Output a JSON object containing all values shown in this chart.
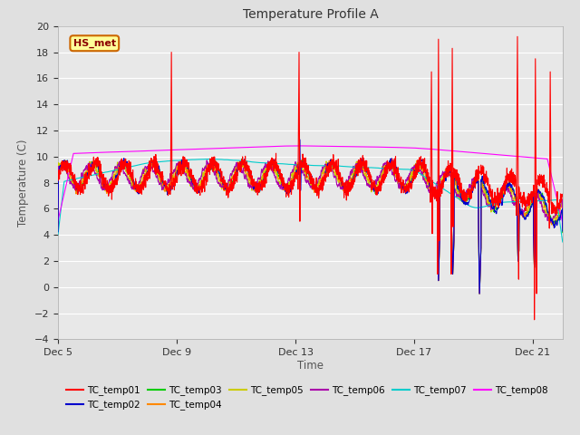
{
  "title": "Temperature Profile A",
  "xlabel": "Time",
  "ylabel": "Temperature (C)",
  "ylim": [
    -4,
    20
  ],
  "yticks": [
    -4,
    -2,
    0,
    2,
    4,
    6,
    8,
    10,
    12,
    14,
    16,
    18,
    20
  ],
  "xtick_labels": [
    "Dec 5",
    "Dec 9",
    "Dec 13",
    "Dec 17",
    "Dec 21"
  ],
  "xtick_positions": [
    0,
    4,
    8,
    12,
    16
  ],
  "xlim": [
    0,
    17
  ],
  "background_color": "#e0e0e0",
  "plot_bg_color": "#e8e8e8",
  "grid_color": "#ffffff",
  "annotation_text": "HS_met",
  "annotation_bg": "#ffff99",
  "annotation_border": "#cc6600",
  "annotation_text_color": "#8b0000",
  "series_colors": {
    "TC_temp01": "#ff0000",
    "TC_temp02": "#0000cc",
    "TC_temp03": "#00cc00",
    "TC_temp04": "#ff8800",
    "TC_temp05": "#cccc00",
    "TC_temp06": "#aa00aa",
    "TC_temp07": "#00cccc",
    "TC_temp08": "#ff00ff"
  },
  "legend_entries": [
    "TC_temp01",
    "TC_temp02",
    "TC_temp03",
    "TC_temp04",
    "TC_temp05",
    "TC_temp06",
    "TC_temp07",
    "TC_temp08"
  ]
}
